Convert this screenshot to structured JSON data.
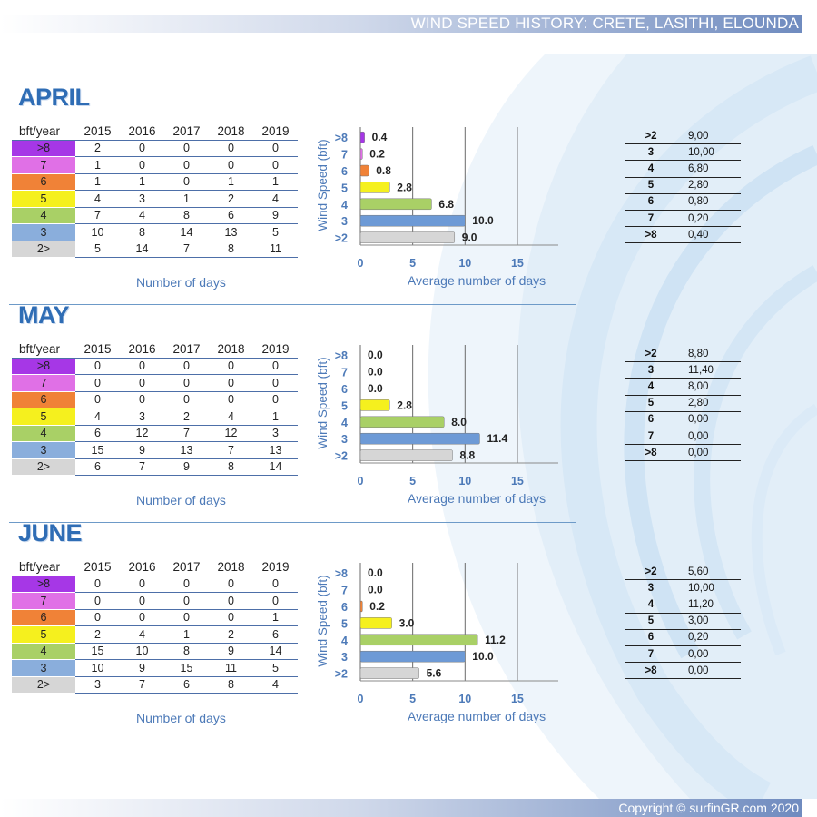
{
  "header": {
    "title": "WIND SPEED HISTORY: CRETE, LASITHI, ELOUNDA"
  },
  "footer": {
    "copyright": "Copyright © surfinGR.com 2020"
  },
  "colors": {
    ">8": "#a637e6",
    "7": "#e070e6",
    "6": "#f08237",
    "5": "#f5f01e",
    "4": "#a9d066",
    "3": "#8aaedc",
    "2>": "#d6d6d6"
  },
  "labels": {
    "table_caption": "Number of days",
    "header_corner": "bft/year"
  },
  "months": [
    {
      "name": "APRIL",
      "years": [
        "2015",
        "2016",
        "2017",
        "2018",
        "2019"
      ],
      "table_rows": [
        {
          "label": ">8",
          "values": [
            "2",
            "0",
            "0",
            "0",
            "0"
          ]
        },
        {
          "label": "7",
          "values": [
            "1",
            "0",
            "0",
            "0",
            "0"
          ]
        },
        {
          "label": "6",
          "values": [
            "1",
            "1",
            "0",
            "1",
            "1"
          ]
        },
        {
          "label": "5",
          "values": [
            "4",
            "3",
            "1",
            "2",
            "4"
          ]
        },
        {
          "label": "4",
          "values": [
            "7",
            "4",
            "8",
            "6",
            "9"
          ]
        },
        {
          "label": "3",
          "values": [
            "10",
            "8",
            "14",
            "13",
            "5"
          ]
        },
        {
          "label": "2>",
          "values": [
            "5",
            "14",
            "7",
            "8",
            "11"
          ]
        }
      ],
      "averages": [
        {
          "k": ">2",
          "v": "9,00"
        },
        {
          "k": "3",
          "v": "10,00"
        },
        {
          "k": "4",
          "v": "6,80"
        },
        {
          "k": "5",
          "v": "2,80"
        },
        {
          "k": "6",
          "v": "0,80"
        },
        {
          "k": "7",
          "v": "0,20"
        },
        {
          "k": ">8",
          "v": "0,40"
        }
      ]
    },
    {
      "name": "MAY",
      "years": [
        "2015",
        "2016",
        "2017",
        "2018",
        "2019"
      ],
      "table_rows": [
        {
          "label": ">8",
          "values": [
            "0",
            "0",
            "0",
            "0",
            "0"
          ]
        },
        {
          "label": "7",
          "values": [
            "0",
            "0",
            "0",
            "0",
            "0"
          ]
        },
        {
          "label": "6",
          "values": [
            "0",
            "0",
            "0",
            "0",
            "0"
          ]
        },
        {
          "label": "5",
          "values": [
            "4",
            "3",
            "2",
            "4",
            "1"
          ]
        },
        {
          "label": "4",
          "values": [
            "6",
            "12",
            "7",
            "12",
            "3"
          ]
        },
        {
          "label": "3",
          "values": [
            "15",
            "9",
            "13",
            "7",
            "13"
          ]
        },
        {
          "label": "2>",
          "values": [
            "6",
            "7",
            "9",
            "8",
            "14"
          ]
        }
      ],
      "averages": [
        {
          "k": ">2",
          "v": "8,80"
        },
        {
          "k": "3",
          "v": "11,40"
        },
        {
          "k": "4",
          "v": "8,00"
        },
        {
          "k": "5",
          "v": "2,80"
        },
        {
          "k": "6",
          "v": "0,00"
        },
        {
          "k": "7",
          "v": "0,00"
        },
        {
          "k": ">8",
          "v": "0,00"
        }
      ]
    },
    {
      "name": "JUNE",
      "years": [
        "2015",
        "2016",
        "2017",
        "2018",
        "2019"
      ],
      "table_rows": [
        {
          "label": ">8",
          "values": [
            "0",
            "0",
            "0",
            "0",
            "0"
          ]
        },
        {
          "label": "7",
          "values": [
            "0",
            "0",
            "0",
            "0",
            "0"
          ]
        },
        {
          "label": "6",
          "values": [
            "0",
            "0",
            "0",
            "0",
            "1"
          ]
        },
        {
          "label": "5",
          "values": [
            "2",
            "4",
            "1",
            "2",
            "6"
          ]
        },
        {
          "label": "4",
          "values": [
            "15",
            "10",
            "8",
            "9",
            "14"
          ]
        },
        {
          "label": "3",
          "values": [
            "10",
            "9",
            "15",
            "11",
            "5"
          ]
        },
        {
          "label": "2>",
          "values": [
            "3",
            "7",
            "6",
            "8",
            "4"
          ]
        }
      ],
      "averages": [
        {
          "k": ">2",
          "v": "5,60"
        },
        {
          "k": "3",
          "v": "10,00"
        },
        {
          "k": "4",
          "v": "11,20"
        },
        {
          "k": "5",
          "v": "3,00"
        },
        {
          "k": "6",
          "v": "0,20"
        },
        {
          "k": "7",
          "v": "0,00"
        },
        {
          "k": ">8",
          "v": "0,00"
        }
      ]
    }
  ],
  "chart_data": [
    {
      "type": "bar",
      "orientation": "horizontal",
      "title": "APRIL",
      "categories": [
        ">8",
        "7",
        "6",
        "5",
        "4",
        "3",
        ">2"
      ],
      "values": [
        0.4,
        0.2,
        0.8,
        2.8,
        6.8,
        10.0,
        9.0
      ],
      "value_labels": [
        "0.4",
        "0.2",
        "0.8",
        "2.8",
        "6.8",
        "10.0",
        "9.0"
      ],
      "xlabel": "Average number of days",
      "ylabel": "Wind Speed (bft)",
      "xlim": [
        0,
        15
      ],
      "xticks": [
        "0",
        "5",
        "10",
        "15"
      ],
      "grid": true
    },
    {
      "type": "bar",
      "orientation": "horizontal",
      "title": "MAY",
      "categories": [
        ">8",
        "7",
        "6",
        "5",
        "4",
        "3",
        ">2"
      ],
      "values": [
        0.0,
        0.0,
        0.0,
        2.8,
        8.0,
        11.4,
        8.8
      ],
      "value_labels": [
        "0.0",
        "0.0",
        "0.0",
        "2.8",
        "8.0",
        "11.4",
        "8.8"
      ],
      "xlabel": "Average number of days",
      "ylabel": "Wind Speed (bft)",
      "xlim": [
        0,
        15
      ],
      "xticks": [
        "0",
        "5",
        "10",
        "15"
      ],
      "grid": true
    },
    {
      "type": "bar",
      "orientation": "horizontal",
      "title": "JUNE",
      "categories": [
        ">8",
        "7",
        "6",
        "5",
        "4",
        "3",
        ">2"
      ],
      "values": [
        0.0,
        0.0,
        0.2,
        3.0,
        11.2,
        10.0,
        5.6
      ],
      "value_labels": [
        "0.0",
        "0.0",
        "0.2",
        "3.0",
        "11.2",
        "10.0",
        "5.6"
      ],
      "xlabel": "Average number of days",
      "ylabel": "Wind Speed (bft)",
      "xlim": [
        0,
        15
      ],
      "xticks": [
        "0",
        "5",
        "10",
        "15"
      ],
      "grid": true
    }
  ]
}
